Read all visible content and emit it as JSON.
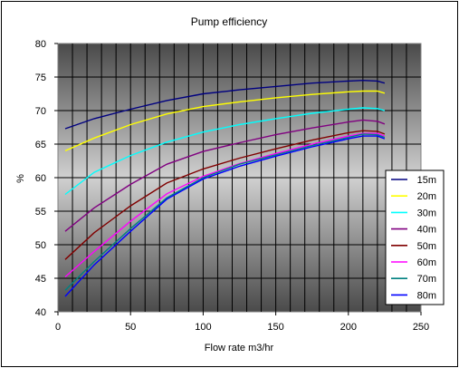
{
  "chart_data": {
    "type": "line",
    "title": "Pump efficiency",
    "xlabel": "Flow rate m3/hr",
    "ylabel": "%",
    "xlim": [
      0,
      250
    ],
    "ylim": [
      40,
      80
    ],
    "x_ticks": [
      "0",
      "50",
      "100",
      "150",
      "200",
      "250"
    ],
    "y_ticks": [
      "40",
      "45",
      "50",
      "55",
      "60",
      "65",
      "70",
      "75",
      "80"
    ],
    "x_tick_values": [
      0,
      50,
      100,
      150,
      200,
      250
    ],
    "y_tick_values": [
      40,
      45,
      50,
      55,
      60,
      65,
      70,
      75,
      80
    ],
    "grid": true,
    "legend_position": "right",
    "x": [
      5,
      25,
      50,
      75,
      100,
      125,
      150,
      175,
      200,
      210,
      220,
      225
    ],
    "series": [
      {
        "name": "15m",
        "color": "#000080",
        "values": [
          67.3,
          68.8,
          70.2,
          71.5,
          72.5,
          73.1,
          73.6,
          74.1,
          74.4,
          74.5,
          74.4,
          74.1
        ]
      },
      {
        "name": "20m",
        "color": "#ffff00",
        "values": [
          64.0,
          65.9,
          67.9,
          69.5,
          70.6,
          71.3,
          71.9,
          72.4,
          72.8,
          72.9,
          72.9,
          72.6
        ]
      },
      {
        "name": "30m",
        "color": "#00ffff",
        "values": [
          57.5,
          60.8,
          63.3,
          65.3,
          66.8,
          67.9,
          68.8,
          69.6,
          70.2,
          70.4,
          70.3,
          70.0
        ]
      },
      {
        "name": "40m",
        "color": "#800080",
        "values": [
          52.0,
          55.5,
          59.0,
          62.0,
          63.9,
          65.2,
          66.4,
          67.4,
          68.3,
          68.6,
          68.4,
          68.0
        ]
      },
      {
        "name": "50m",
        "color": "#800000",
        "values": [
          47.8,
          51.8,
          55.8,
          59.2,
          61.3,
          62.9,
          64.3,
          65.6,
          66.7,
          67.0,
          66.9,
          66.5
        ]
      },
      {
        "name": "60m",
        "color": "#ff00ff",
        "values": [
          45.2,
          49.0,
          53.5,
          57.6,
          60.2,
          62.1,
          63.6,
          65.0,
          66.2,
          66.6,
          66.6,
          66.2
        ]
      },
      {
        "name": "70m",
        "color": "#008080",
        "values": [
          43.2,
          47.5,
          52.4,
          57.0,
          60.0,
          62.0,
          63.4,
          64.8,
          66.0,
          66.5,
          66.4,
          66.0
        ]
      },
      {
        "name": "80m",
        "color": "#0000ff",
        "values": [
          42.3,
          47.0,
          52.0,
          56.8,
          59.8,
          61.7,
          63.2,
          64.6,
          65.8,
          66.2,
          66.2,
          65.8
        ]
      }
    ]
  }
}
